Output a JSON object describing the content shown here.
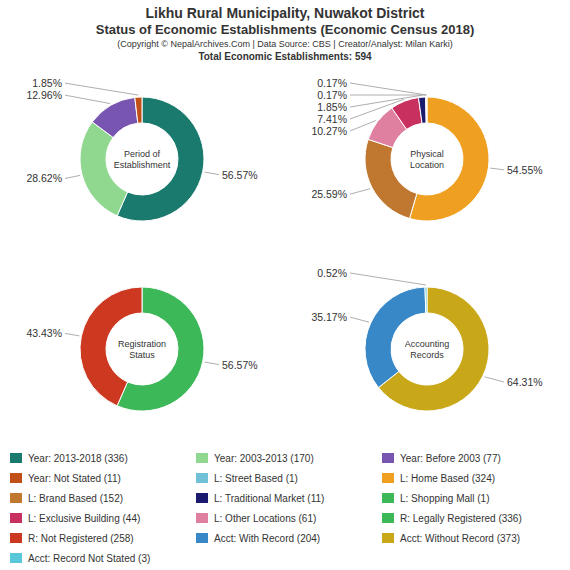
{
  "title": [
    "Likhu Rural Municipality, Nuwakot District",
    "Status of Economic Establishments (Economic Census 2018)"
  ],
  "subtitle": [
    "(Copyright © NepalArchives.Com | Data Source: CBS | Creator/Analyst: Milan Karki)",
    "Total Economic Establishments: 594"
  ],
  "chart_data": [
    {
      "type": "pie",
      "title": "Period of\nEstablishment",
      "values": [
        56.57,
        28.62,
        12.96,
        1.85
      ],
      "value_labels": [
        "56.57%",
        "28.62%",
        "12.96%",
        "1.85%"
      ],
      "colors": [
        "#1a7a6e",
        "#90d890",
        "#7855b0",
        "#c05018"
      ],
      "data_labels": true
    },
    {
      "type": "pie",
      "title": "Physical\nLocation",
      "values": [
        54.55,
        25.59,
        10.27,
        7.41,
        1.85,
        0.17,
        0.17
      ],
      "value_labels": [
        "54.55%",
        "25.59%",
        "10.27%",
        "7.41%",
        "1.85%",
        "0.17%",
        "0.17%"
      ],
      "colors": [
        "#f0a020",
        "#c07830",
        "#e080a0",
        "#c83060",
        "#1a1a6e",
        "#70c0d8",
        "#a05070"
      ],
      "data_labels": true
    },
    {
      "type": "pie",
      "title": "Registration\nStatus",
      "values": [
        56.57,
        43.43
      ],
      "value_labels": [
        "56.57%",
        "43.43%"
      ],
      "colors": [
        "#3cb858",
        "#cc3820"
      ],
      "data_labels": true
    },
    {
      "type": "pie",
      "title": "Accounting\nRecords",
      "values": [
        64.31,
        35.17,
        0.52
      ],
      "value_labels": [
        "64.31%",
        "35.17%",
        "0.52%"
      ],
      "colors": [
        "#c8a818",
        "#3888c8",
        "#58c8d8"
      ],
      "data_labels": true
    }
  ],
  "legend": "bottom",
  "legend_items": [
    {
      "name": "Year: 2013-2018 (336)",
      "color": "#1a7a6e"
    },
    {
      "name": "Year: 2003-2013 (170)",
      "color": "#90d890"
    },
    {
      "name": "Year: Before 2003 (77)",
      "color": "#7855b0"
    },
    {
      "name": "Year: Not Stated (11)",
      "color": "#c05018"
    },
    {
      "name": "L: Street Based (1)",
      "color": "#70c0d8"
    },
    {
      "name": "L: Home Based (324)",
      "color": "#f0a020"
    },
    {
      "name": "L: Brand Based (152)",
      "color": "#c07830"
    },
    {
      "name": "L: Traditional Market (11)",
      "color": "#1a1a6e"
    },
    {
      "name": "L: Shopping Mall (1)",
      "color": "#3cb858"
    },
    {
      "name": "L: Exclusive Building (44)",
      "color": "#c83060"
    },
    {
      "name": "L: Other Locations (61)",
      "color": "#e080a0"
    },
    {
      "name": "R: Legally Registered (336)",
      "color": "#3cb858"
    },
    {
      "name": "R: Not Registered (258)",
      "color": "#cc3820"
    },
    {
      "name": "Acct: With Record (204)",
      "color": "#3888c8"
    },
    {
      "name": "Acct: Without Record (373)",
      "color": "#c8a818"
    },
    {
      "name": "Acct: Record Not Stated (3)",
      "color": "#58c8d8"
    }
  ]
}
